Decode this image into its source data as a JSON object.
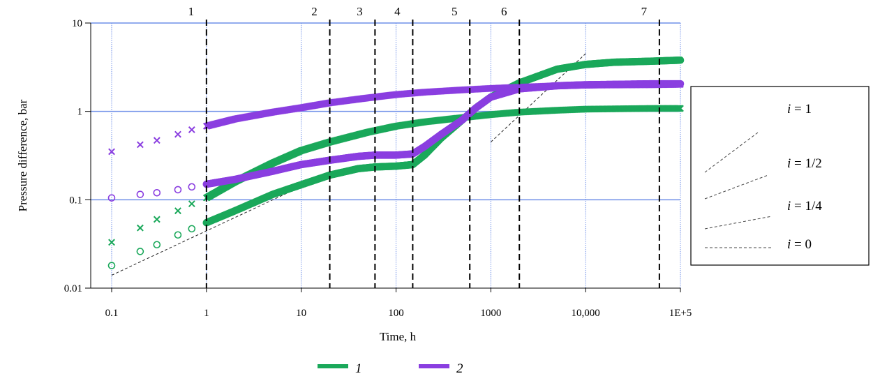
{
  "chart_data": {
    "type": "scatter",
    "xlabel": "Time, h",
    "ylabel": "Pressure difference, bar",
    "x_scale": "log",
    "y_scale": "log",
    "xlim": [
      0.1,
      100000
    ],
    "ylim": [
      0.01,
      10
    ],
    "x_ticks": [
      {
        "value": 0.1,
        "label": "0.1"
      },
      {
        "value": 1,
        "label": "1"
      },
      {
        "value": 10,
        "label": "10"
      },
      {
        "value": 100,
        "label": "100"
      },
      {
        "value": 1000,
        "label": "1000"
      },
      {
        "value": 10000,
        "label": "10,000"
      },
      {
        "value": 100000,
        "label": "1E+5"
      }
    ],
    "y_ticks": [
      {
        "value": 0.01,
        "label": "0.01"
      },
      {
        "value": 0.1,
        "label": "0.1"
      },
      {
        "value": 1,
        "label": "1"
      },
      {
        "value": 10,
        "label": "10"
      }
    ],
    "grid": true,
    "flow_regime_boundaries": [
      {
        "label": "1",
        "x": 1
      },
      {
        "label": "2",
        "x": 20
      },
      {
        "label": "3",
        "x": 60
      },
      {
        "label": "4",
        "x": 150
      },
      {
        "label": "5",
        "x": 600
      },
      {
        "label": "6",
        "x": 2000
      },
      {
        "label": "7",
        "x": 60000
      }
    ],
    "series": [
      {
        "name": "1",
        "color": "#1aa85a",
        "pressure": [
          [
            0.1,
            0.018
          ],
          [
            0.2,
            0.026
          ],
          [
            0.3,
            0.031
          ],
          [
            0.5,
            0.04
          ],
          [
            0.7,
            0.047
          ],
          [
            1,
            0.055
          ],
          [
            2,
            0.075
          ],
          [
            5,
            0.115
          ],
          [
            10,
            0.148
          ],
          [
            20,
            0.19
          ],
          [
            40,
            0.225
          ],
          [
            60,
            0.235
          ],
          [
            100,
            0.24
          ],
          [
            150,
            0.25
          ],
          [
            200,
            0.32
          ],
          [
            300,
            0.5
          ],
          [
            500,
            0.8
          ],
          [
            700,
            1.1
          ],
          [
            1000,
            1.45
          ],
          [
            2000,
            2.1
          ],
          [
            5000,
            3
          ],
          [
            10000,
            3.4
          ],
          [
            20000,
            3.6
          ],
          [
            50000,
            3.7
          ],
          [
            100000,
            3.8
          ]
        ],
        "derivative": [
          [
            0.1,
            0.033
          ],
          [
            0.2,
            0.048
          ],
          [
            0.3,
            0.06
          ],
          [
            0.5,
            0.075
          ],
          [
            0.7,
            0.09
          ],
          [
            1,
            0.105
          ],
          [
            2,
            0.16
          ],
          [
            5,
            0.26
          ],
          [
            10,
            0.36
          ],
          [
            20,
            0.45
          ],
          [
            50,
            0.58
          ],
          [
            100,
            0.68
          ],
          [
            200,
            0.76
          ],
          [
            500,
            0.85
          ],
          [
            1000,
            0.92
          ],
          [
            2000,
            0.98
          ],
          [
            5000,
            1.03
          ],
          [
            10000,
            1.06
          ],
          [
            50000,
            1.08
          ],
          [
            100000,
            1.08
          ]
        ]
      },
      {
        "name": "2",
        "color": "#8a3ee0",
        "pressure": [
          [
            0.1,
            0.105
          ],
          [
            0.2,
            0.115
          ],
          [
            0.3,
            0.12
          ],
          [
            0.5,
            0.13
          ],
          [
            0.7,
            0.14
          ],
          [
            1,
            0.15
          ],
          [
            2,
            0.17
          ],
          [
            5,
            0.21
          ],
          [
            10,
            0.25
          ],
          [
            20,
            0.28
          ],
          [
            40,
            0.31
          ],
          [
            60,
            0.32
          ],
          [
            100,
            0.32
          ],
          [
            150,
            0.33
          ],
          [
            200,
            0.4
          ],
          [
            300,
            0.55
          ],
          [
            500,
            0.8
          ],
          [
            700,
            1.1
          ],
          [
            1000,
            1.45
          ],
          [
            2000,
            1.8
          ],
          [
            5000,
            1.95
          ],
          [
            10000,
            2.0
          ],
          [
            50000,
            2.05
          ],
          [
            100000,
            2.05
          ]
        ],
        "derivative": [
          [
            0.1,
            0.35
          ],
          [
            0.2,
            0.42
          ],
          [
            0.3,
            0.47
          ],
          [
            0.5,
            0.55
          ],
          [
            0.7,
            0.62
          ],
          [
            1,
            0.68
          ],
          [
            2,
            0.82
          ],
          [
            5,
            0.98
          ],
          [
            10,
            1.1
          ],
          [
            20,
            1.25
          ],
          [
            50,
            1.42
          ],
          [
            100,
            1.55
          ],
          [
            200,
            1.65
          ],
          [
            500,
            1.75
          ],
          [
            1000,
            1.82
          ],
          [
            2000,
            1.88
          ],
          [
            5000,
            1.95
          ],
          [
            10000,
            1.98
          ],
          [
            50000,
            2.0
          ],
          [
            100000,
            2.02
          ]
        ]
      }
    ],
    "reference_lines": [
      {
        "slope_label": "i = 1",
        "x": [
          1000,
          10000
        ],
        "y": [
          0.45,
          4.5
        ]
      },
      {
        "slope_label": "i = 1/2",
        "x": [
          0.1,
          20
        ],
        "y": [
          0.014,
          0.2
        ]
      },
      {
        "slope_label": "i = 0",
        "x": [
          20000,
          100000
        ],
        "y": [
          3.6,
          3.6
        ]
      },
      {
        "slope_label": "i = 0",
        "x": [
          40,
          100
        ],
        "y": [
          0.235,
          0.235
        ]
      }
    ],
    "legend": {
      "placement": "right",
      "entries": [
        {
          "label": "i = 1",
          "slope": 1
        },
        {
          "label": "i = 1/2",
          "slope": 0.5
        },
        {
          "label": "i = 1/4",
          "slope": 0.25
        },
        {
          "label": "i = 0",
          "slope": 0
        }
      ]
    },
    "series_legend": {
      "placement": "bottom",
      "entries": [
        {
          "label": "1",
          "color": "#1aa85a"
        },
        {
          "label": "2",
          "color": "#8a3ee0"
        }
      ]
    }
  }
}
